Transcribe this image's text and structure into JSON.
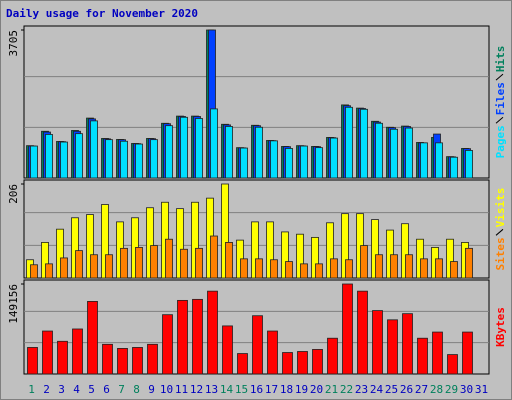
{
  "chart_data": [
    {
      "type": "bar",
      "title": "Daily usage for November 2020",
      "ylim": [
        0,
        3705
      ],
      "yticks": [
        3705
      ],
      "grid": true,
      "series": [
        {
          "name": "Hits",
          "color": "#00805c",
          "values": [
            810,
            1170,
            915,
            1190,
            1500,
            990,
            965,
            865,
            990,
            1370,
            1550,
            1550,
            3705,
            1345,
            760,
            1320,
            940,
            790,
            810,
            790,
            1015,
            1830,
            1750,
            1420,
            1270,
            1300,
            890,
            1015,
            535,
            740,
            null
          ]
        },
        {
          "name": "Files",
          "color": "#0040ff",
          "values": [
            800,
            1150,
            910,
            1170,
            1480,
            980,
            960,
            860,
            985,
            1360,
            1540,
            1540,
            3705,
            1330,
            755,
            1310,
            935,
            785,
            805,
            785,
            1010,
            1810,
            1740,
            1400,
            1260,
            1290,
            880,
            1100,
            530,
            735,
            null
          ]
        },
        {
          "name": "Pages",
          "color": "#00e0ff",
          "values": [
            800,
            1090,
            900,
            1110,
            1430,
            960,
            920,
            850,
            960,
            1310,
            1520,
            1490,
            1730,
            1290,
            750,
            1270,
            930,
            740,
            800,
            760,
            1000,
            1770,
            1720,
            1370,
            1220,
            1250,
            880,
            880,
            520,
            690,
            null
          ]
        }
      ]
    },
    {
      "type": "bar",
      "ylim": [
        0,
        206
      ],
      "yticks": [
        206
      ],
      "grid": true,
      "series": [
        {
          "name": "Visits",
          "color": "#ffff00",
          "values": [
            40,
            78,
            107,
            132,
            139,
            161,
            123,
            132,
            154,
            166,
            152,
            166,
            175,
            206,
            83,
            123,
            123,
            101,
            96,
            89,
            121,
            141,
            141,
            128,
            105,
            119,
            85,
            67,
            85,
            78,
            null
          ]
        },
        {
          "name": "Sites",
          "color": "#ff8000",
          "values": [
            29,
            31,
            44,
            60,
            51,
            51,
            65,
            67,
            71,
            85,
            63,
            65,
            92,
            78,
            42,
            42,
            40,
            36,
            31,
            31,
            42,
            40,
            71,
            51,
            51,
            51,
            42,
            42,
            36,
            65,
            null
          ]
        }
      ]
    },
    {
      "type": "bar",
      "ylim": [
        0,
        149156
      ],
      "yticks": [
        149156
      ],
      "grid": true,
      "categories": [
        "1",
        "2",
        "3",
        "4",
        "5",
        "6",
        "7",
        "8",
        "9",
        "10",
        "11",
        "12",
        "13",
        "14",
        "15",
        "16",
        "17",
        "18",
        "19",
        "20",
        "21",
        "22",
        "23",
        "24",
        "25",
        "26",
        "27",
        "28",
        "29",
        "30",
        "31"
      ],
      "category_colors": [
        "#00805c",
        "#0000c0",
        "#0000c0",
        "#0000c0",
        "#0000c0",
        "#0000c0",
        "#00805c",
        "#00805c",
        "#0000c0",
        "#0000c0",
        "#0000c0",
        "#0000c0",
        "#0000c0",
        "#00805c",
        "#00805c",
        "#0000c0",
        "#0000c0",
        "#0000c0",
        "#0000c0",
        "#0000c0",
        "#00805c",
        "#00805c",
        "#0000c0",
        "#0000c0",
        "#0000c0",
        "#0000c0",
        "#0000c0",
        "#00805c",
        "#00805c",
        "#0000c0",
        "#0000c0"
      ],
      "series": [
        {
          "name": "KBytes",
          "color": "#ff0000",
          "values": [
            44000,
            71200,
            54200,
            74600,
            120300,
            49200,
            42400,
            44000,
            49200,
            98300,
            122000,
            123700,
            137300,
            79700,
            33900,
            96600,
            71200,
            35600,
            37300,
            40700,
            59300,
            149156,
            137300,
            105100,
            89800,
            100000,
            59300,
            69500,
            32200,
            69500,
            null
          ]
        }
      ]
    }
  ]
}
